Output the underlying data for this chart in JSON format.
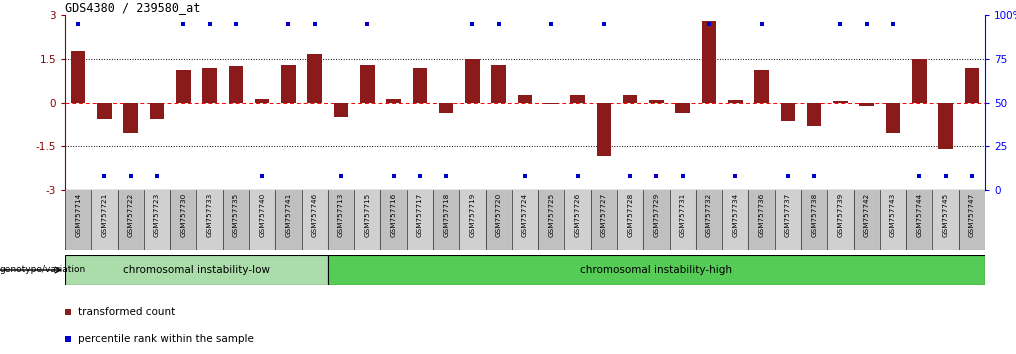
{
  "title": "GDS4380 / 239580_at",
  "sample_labels": [
    "GSM757714",
    "GSM757721",
    "GSM757722",
    "GSM757723",
    "GSM757730",
    "GSM757733",
    "GSM757735",
    "GSM757740",
    "GSM757741",
    "GSM757746",
    "GSM757713",
    "GSM757715",
    "GSM757716",
    "GSM757717",
    "GSM757718",
    "GSM757719",
    "GSM757720",
    "GSM757724",
    "GSM757725",
    "GSM757726",
    "GSM757727",
    "GSM757728",
    "GSM757729",
    "GSM757731",
    "GSM757732",
    "GSM757734",
    "GSM757736",
    "GSM757737",
    "GSM757738",
    "GSM757739",
    "GSM757742",
    "GSM757743",
    "GSM757744",
    "GSM757745",
    "GSM757747"
  ],
  "bar_values": [
    1.75,
    -0.55,
    -1.05,
    -0.55,
    1.1,
    1.2,
    1.25,
    0.12,
    1.3,
    1.65,
    -0.5,
    1.3,
    0.12,
    1.2,
    -0.35,
    1.5,
    1.3,
    0.25,
    -0.05,
    0.25,
    -1.85,
    0.25,
    0.08,
    -0.35,
    2.8,
    0.08,
    1.1,
    -0.65,
    -0.8,
    0.05,
    -0.12,
    -1.05,
    1.5,
    -1.6,
    1.2
  ],
  "percentile_values": [
    95,
    8,
    8,
    8,
    95,
    95,
    95,
    8,
    95,
    95,
    8,
    95,
    8,
    8,
    8,
    95,
    95,
    8,
    95,
    8,
    95,
    8,
    8,
    8,
    95,
    8,
    95,
    8,
    8,
    95,
    95,
    95,
    8,
    8,
    8
  ],
  "bar_color": "#8B1A1A",
  "dot_color": "#0000CC",
  "ylim_left": [
    -3.0,
    3.0
  ],
  "ylim_right": [
    0,
    100
  ],
  "yticks_left": [
    -3,
    -1.5,
    0,
    1.5,
    3
  ],
  "ytick_labels_left": [
    "-3",
    "-1.5",
    "0",
    "1.5",
    "3"
  ],
  "yticks_right": [
    0,
    25,
    50,
    75,
    100
  ],
  "ytick_labels_right": [
    "0",
    "25",
    "50",
    "75",
    "100%"
  ],
  "group1_label": "chromosomal instability-low",
  "group2_label": "chromosomal instability-high",
  "group1_count": 10,
  "group2_count": 25,
  "group1_color": "#AADDAA",
  "group2_color": "#55CC55",
  "genotype_label": "genotype/variation",
  "legend_bar_label": "transformed count",
  "legend_dot_label": "percentile rank within the sample",
  "bar_color_red": "#CC0000",
  "dot_color_blue": "#0000CC",
  "tick_label_bg": "#C8C8C8",
  "chart_bg": "#FFFFFF"
}
